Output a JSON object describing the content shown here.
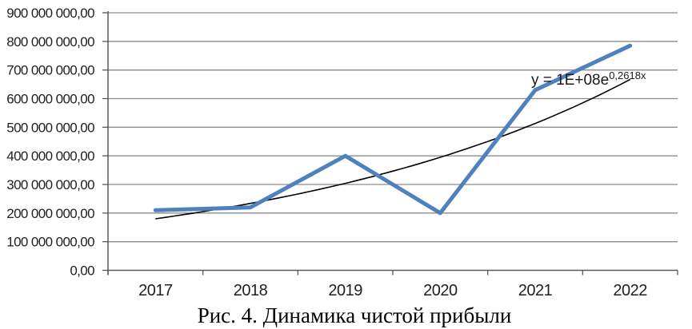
{
  "caption": "Рис. 4. Динамика чистой прибыли",
  "chart_data": {
    "type": "line",
    "categories": [
      "2017",
      "2018",
      "2019",
      "2020",
      "2021",
      "2022"
    ],
    "series": [
      {
        "values": [
          210000000,
          220000000,
          400000000,
          200000000,
          630000000,
          785000000
        ],
        "color": "#4F81BD",
        "stroke_width": 5
      }
    ],
    "trendline": {
      "shape": "exponential",
      "equation": "y = 1E+08e^0,2618x",
      "equation_base": "y = 1E+08e",
      "equation_exponent": "0,2618x",
      "values_at_categories": [
        180000000,
        234000000,
        304000000,
        395000000,
        513000000,
        667000000
      ],
      "color": "#000000"
    },
    "ylim": [
      0,
      900000000
    ],
    "ytick_step": 100000000,
    "ytick_labels": [
      "0,00",
      "100 000 000,00",
      "200 000 000,00",
      "300 000 000,00",
      "400 000 000,00",
      "500 000 000,00",
      "600 000 000,00",
      "700 000 000,00",
      "800 000 000,00",
      "900 000 000,00"
    ],
    "grid": true,
    "legend": "none",
    "title": ""
  },
  "colors": {
    "background": "#ffffff",
    "gridline": "#8c8c8c",
    "axis": "#595959",
    "text": "#1f1f1f",
    "series_line": "#4F81BD",
    "trendline": "#000000"
  }
}
